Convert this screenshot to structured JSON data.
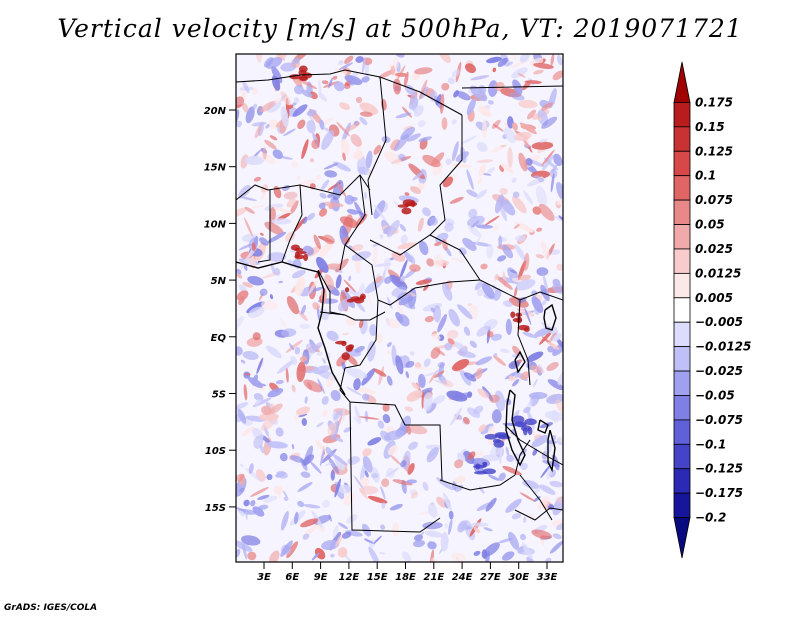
{
  "title": "Vertical velocity [m/s] at 500hPa, VT: 2019071721",
  "credit": "GrADS: IGES/COLA",
  "map": {
    "lat_labels": [
      "20N",
      "15N",
      "10N",
      "5N",
      "EQ",
      "5S",
      "10S",
      "15S"
    ],
    "lon_labels": [
      "3E",
      "6E",
      "9E",
      "12E",
      "15E",
      "18E",
      "21E",
      "24E",
      "27E",
      "30E",
      "33E"
    ]
  },
  "colorbar": {
    "units": "m/s",
    "levels": [
      "0.175",
      "0.15",
      "0.125",
      "0.1",
      "0.075",
      "0.05",
      "0.025",
      "0.0125",
      "0.005",
      "−0.005",
      "−0.0125",
      "−0.025",
      "−0.05",
      "−0.075",
      "−0.1",
      "−0.125",
      "−0.175",
      "−0.2"
    ],
    "colors": [
      "#a00000",
      "#b81c1c",
      "#c83232",
      "#d94848",
      "#e06666",
      "#e88888",
      "#f0aaaa",
      "#f8cccc",
      "#fde8e8",
      "#ffffff",
      "#dcdcfc",
      "#c0c0f8",
      "#a0a0f0",
      "#8080e4",
      "#6060d8",
      "#4444c8",
      "#2a2ab4",
      "#16169c",
      "#0a0a80"
    ]
  }
}
